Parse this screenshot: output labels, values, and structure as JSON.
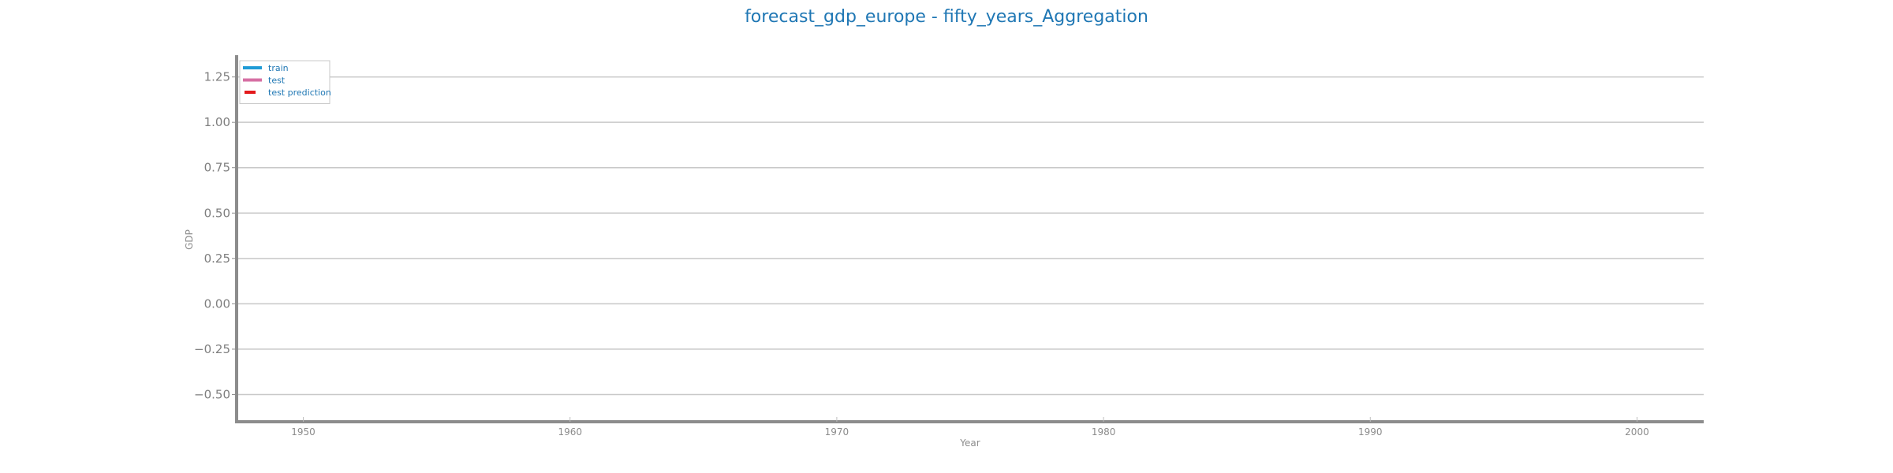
{
  "chart_data": {
    "type": "line",
    "title": "forecast_gdp_europe - fifty_years_Aggregation",
    "xlabel": "Year",
    "ylabel": "GDP",
    "xlim": [
      1947.5,
      2002.5
    ],
    "ylim": [
      -0.65,
      1.37
    ],
    "x_ticks": [
      1950,
      1960,
      1970,
      1980,
      1990,
      2000
    ],
    "y_ticks": [
      -0.5,
      -0.25,
      0.0,
      0.25,
      0.5,
      0.75,
      1.0,
      1.25
    ],
    "y_tick_labels": [
      "−0.50",
      "−0.25",
      "0.00",
      "0.25",
      "0.50",
      "0.75",
      "1.00",
      "1.25"
    ],
    "grid": "horizontal",
    "legend_position": "top-left",
    "series": [
      {
        "name": "train",
        "color": "#1f9bd6",
        "style": "solid",
        "x": [],
        "y": []
      },
      {
        "name": "test",
        "color": "#d66fa3",
        "style": "solid",
        "x": [],
        "y": []
      },
      {
        "name": "test prediction",
        "color": "#e31a1c",
        "style": "dashed",
        "x": [],
        "y": []
      }
    ]
  }
}
